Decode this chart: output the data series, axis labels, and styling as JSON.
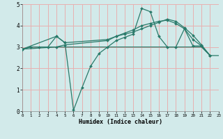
{
  "xlabel": "Humidex (Indice chaleur)",
  "xlim": [
    0,
    23
  ],
  "ylim": [
    0,
    5
  ],
  "xtick_vals": [
    0,
    1,
    2,
    3,
    4,
    5,
    6,
    7,
    8,
    9,
    10,
    11,
    12,
    13,
    14,
    15,
    16,
    17,
    18,
    19,
    20,
    21,
    22,
    23
  ],
  "ytick_vals": [
    0,
    1,
    2,
    3,
    4,
    5
  ],
  "bg_color": "#d2eaea",
  "grid_color": "#e8b0b0",
  "line_color": "#2a7a6a",
  "lines": [
    {
      "x": [
        0,
        1,
        2,
        3,
        4,
        5,
        6,
        7,
        8,
        9,
        10,
        11,
        12,
        13,
        14,
        15,
        16,
        17,
        18,
        19,
        20,
        21,
        22,
        23
      ],
      "y": [
        2.9,
        3.0,
        3.0,
        3.0,
        3.0,
        3.0,
        3.0,
        3.0,
        3.0,
        3.0,
        3.0,
        3.0,
        3.0,
        3.0,
        3.0,
        3.0,
        3.0,
        3.0,
        3.0,
        3.0,
        3.0,
        3.0,
        2.6,
        2.6
      ],
      "marker": false
    },
    {
      "x": [
        0,
        1,
        2,
        3,
        4,
        5,
        6,
        7,
        8,
        9,
        10,
        11,
        12,
        13,
        14,
        15,
        16,
        17,
        18,
        19,
        20,
        21,
        22
      ],
      "y": [
        2.9,
        3.0,
        3.0,
        3.0,
        3.5,
        3.2,
        0.05,
        1.1,
        2.1,
        2.7,
        3.0,
        3.3,
        3.45,
        3.6,
        4.8,
        4.65,
        3.5,
        3.0,
        3.0,
        3.85,
        3.05,
        3.05,
        2.6
      ],
      "marker": true
    },
    {
      "x": [
        0,
        4,
        5,
        10,
        11,
        12,
        13,
        14,
        15,
        16,
        17,
        18,
        19,
        20,
        21,
        22
      ],
      "y": [
        2.9,
        3.5,
        3.2,
        3.35,
        3.5,
        3.6,
        3.7,
        3.85,
        4.0,
        4.15,
        4.3,
        4.2,
        3.9,
        3.55,
        3.1,
        2.6
      ],
      "marker": true
    },
    {
      "x": [
        0,
        4,
        5,
        10,
        11,
        12,
        13,
        14,
        15,
        16,
        17,
        18,
        19,
        20,
        21,
        22
      ],
      "y": [
        2.9,
        3.0,
        3.1,
        3.3,
        3.5,
        3.65,
        3.8,
        4.0,
        4.1,
        4.2,
        4.25,
        4.1,
        3.85,
        3.35,
        3.05,
        2.6
      ],
      "marker": true
    }
  ]
}
